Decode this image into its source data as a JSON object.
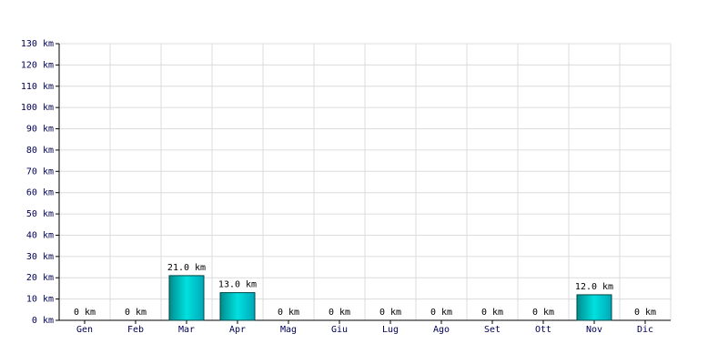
{
  "chart_data": {
    "type": "bar",
    "categories": [
      "Gen",
      "Feb",
      "Mar",
      "Apr",
      "Mag",
      "Giu",
      "Lug",
      "Ago",
      "Set",
      "Ott",
      "Nov",
      "Dic"
    ],
    "values": [
      0,
      0,
      21,
      13,
      0,
      0,
      0,
      0,
      0,
      0,
      12,
      0
    ],
    "value_labels": [
      "0 km",
      "0 km",
      "21.0 km",
      "13.0 km",
      "0 km",
      "0 km",
      "0 km",
      "0 km",
      "0 km",
      "0 km",
      "12.0 km",
      "0 km"
    ],
    "color": "#00c8c8",
    "ylim": [
      0,
      130
    ],
    "yticks": [
      {
        "value": 0,
        "label": "0 km"
      },
      {
        "value": 10,
        "label": "10 km"
      },
      {
        "value": 20,
        "label": "20 km"
      },
      {
        "value": 30,
        "label": "30 km"
      },
      {
        "value": 40,
        "label": "40 km"
      },
      {
        "value": 50,
        "label": "50 km"
      },
      {
        "value": 60,
        "label": "60 km"
      },
      {
        "value": 70,
        "label": "70 km"
      },
      {
        "value": 80,
        "label": "80 km"
      },
      {
        "value": 90,
        "label": "90 km"
      },
      {
        "value": 100,
        "label": "100 km"
      },
      {
        "value": 110,
        "label": "110 km"
      },
      {
        "value": 120,
        "label": "120 km"
      },
      {
        "value": 130,
        "label": "130 km"
      }
    ],
    "grid": true
  }
}
